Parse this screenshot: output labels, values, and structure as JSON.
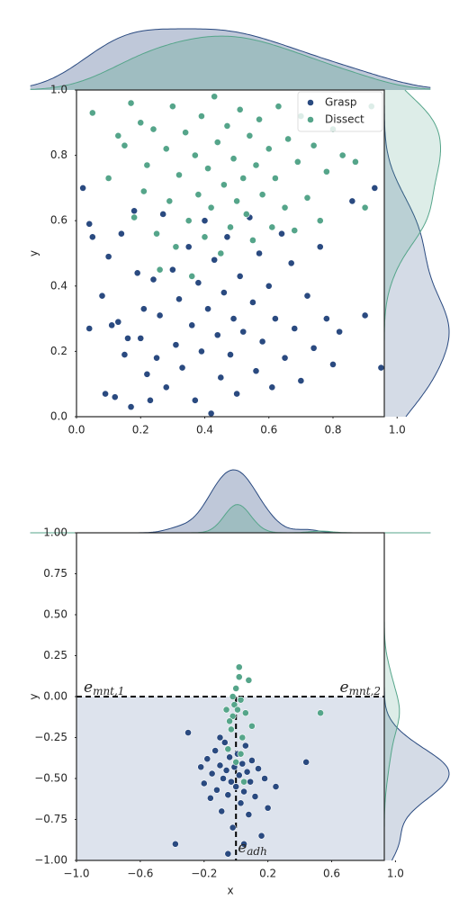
{
  "chart_data": [
    {
      "type": "scatter",
      "ylabel": "y",
      "legend": "upper right",
      "xlim": [
        0,
        0.96
      ],
      "ylim": [
        0,
        1
      ],
      "xticks": [
        {
          "value": 0,
          "label": "0.0"
        },
        0.2,
        0.4,
        0.6,
        0.8,
        {
          "value": 1,
          "label": "1.0"
        }
      ],
      "yticks": [
        {
          "value": 0,
          "label": "0.0"
        },
        0.2,
        0.4,
        0.6,
        0.8,
        {
          "value": 1,
          "label": "1.0"
        }
      ],
      "series": [
        {
          "name": "Grasp",
          "color": "#2a4a80",
          "x": [
            0.02,
            0.04,
            0.04,
            0.05,
            0.08,
            0.09,
            0.1,
            0.11,
            0.12,
            0.13,
            0.14,
            0.15,
            0.16,
            0.17,
            0.18,
            0.19,
            0.2,
            0.21,
            0.22,
            0.23,
            0.24,
            0.25,
            0.26,
            0.27,
            0.28,
            0.3,
            0.31,
            0.32,
            0.33,
            0.35,
            0.36,
            0.37,
            0.38,
            0.39,
            0.4,
            0.41,
            0.42,
            0.43,
            0.44,
            0.45,
            0.46,
            0.47,
            0.48,
            0.49,
            0.5,
            0.51,
            0.52,
            0.54,
            0.55,
            0.56,
            0.57,
            0.58,
            0.6,
            0.61,
            0.62,
            0.64,
            0.65,
            0.67,
            0.68,
            0.7,
            0.72,
            0.74,
            0.76,
            0.78,
            0.8,
            0.82,
            0.86,
            0.9,
            0.93,
            0.95
          ],
          "values": [
            0.7,
            0.59,
            0.27,
            0.55,
            0.37,
            0.07,
            0.49,
            0.28,
            0.06,
            0.29,
            0.56,
            0.19,
            0.24,
            0.03,
            0.63,
            0.44,
            0.24,
            0.33,
            0.13,
            0.05,
            0.42,
            0.18,
            0.31,
            0.62,
            0.09,
            0.45,
            0.22,
            0.36,
            0.15,
            0.52,
            0.28,
            0.05,
            0.41,
            0.2,
            0.6,
            0.33,
            0.01,
            0.48,
            0.25,
            0.12,
            0.38,
            0.55,
            0.19,
            0.3,
            0.07,
            0.43,
            0.26,
            0.61,
            0.35,
            0.14,
            0.5,
            0.23,
            0.4,
            0.09,
            0.3,
            0.56,
            0.18,
            0.47,
            0.27,
            0.11,
            0.37,
            0.21,
            0.52,
            0.3,
            0.16,
            0.26,
            0.66,
            0.31,
            0.7,
            0.15
          ]
        },
        {
          "name": "Dissect",
          "color": "#55a58a",
          "x": [
            0.05,
            0.1,
            0.13,
            0.15,
            0.17,
            0.18,
            0.2,
            0.21,
            0.22,
            0.24,
            0.25,
            0.26,
            0.28,
            0.29,
            0.3,
            0.31,
            0.32,
            0.34,
            0.35,
            0.36,
            0.37,
            0.38,
            0.39,
            0.4,
            0.41,
            0.42,
            0.43,
            0.44,
            0.45,
            0.46,
            0.47,
            0.48,
            0.49,
            0.5,
            0.51,
            0.52,
            0.53,
            0.54,
            0.55,
            0.56,
            0.57,
            0.58,
            0.6,
            0.61,
            0.62,
            0.63,
            0.65,
            0.66,
            0.68,
            0.69,
            0.7,
            0.72,
            0.74,
            0.76,
            0.78,
            0.8,
            0.83,
            0.87,
            0.9,
            0.92
          ],
          "values": [
            0.93,
            0.73,
            0.86,
            0.83,
            0.96,
            0.61,
            0.9,
            0.69,
            0.77,
            0.88,
            0.56,
            0.45,
            0.82,
            0.66,
            0.95,
            0.52,
            0.74,
            0.87,
            0.6,
            0.43,
            0.8,
            0.68,
            0.92,
            0.55,
            0.76,
            0.64,
            0.98,
            0.84,
            0.5,
            0.71,
            0.89,
            0.58,
            0.79,
            0.66,
            0.94,
            0.73,
            0.62,
            0.86,
            0.54,
            0.77,
            0.91,
            0.68,
            0.82,
            0.58,
            0.73,
            0.95,
            0.64,
            0.85,
            0.57,
            0.78,
            0.92,
            0.67,
            0.83,
            0.6,
            0.75,
            0.88,
            0.8,
            0.78,
            0.64,
            0.95
          ]
        }
      ]
    },
    {
      "type": "scatter",
      "xlabel": "x",
      "ylabel": "y",
      "xlim": [
        -1,
        0.93
      ],
      "ylim": [
        -1,
        1
      ],
      "hline": 0,
      "vline": 0,
      "xticks": [
        {
          "value": -1,
          "label": "−1.0"
        },
        {
          "value": -0.6,
          "label": "−0.6"
        },
        {
          "value": -0.2,
          "label": "−0.2"
        },
        0.2,
        0.6,
        {
          "value": 1,
          "label": "1.0"
        }
      ],
      "yticks": [
        {
          "value": 1,
          "label": "1.00"
        },
        0.75,
        {
          "value": 0.5,
          "label": "0.50"
        },
        0.25,
        {
          "value": 0,
          "label": "0.00"
        },
        {
          "value": -0.25,
          "label": "−0.25"
        },
        {
          "value": -0.5,
          "label": "−0.50"
        },
        {
          "value": -0.75,
          "label": "−0.75"
        },
        {
          "value": -1,
          "label": "−1.00"
        }
      ],
      "annotations": [
        {
          "base": "e",
          "sub": "mnt,1"
        },
        {
          "base": "e",
          "sub": "mnt,2"
        },
        {
          "base": "e",
          "sub": "adh"
        }
      ],
      "series": [
        {
          "name": "Grasp",
          "color": "#2a4a80",
          "x": [
            -0.38,
            -0.3,
            -0.22,
            -0.2,
            -0.18,
            -0.16,
            -0.15,
            -0.13,
            -0.12,
            -0.1,
            -0.09,
            -0.08,
            -0.07,
            -0.06,
            -0.05,
            -0.04,
            -0.03,
            -0.02,
            -0.01,
            0,
            0.01,
            0.02,
            0.03,
            0.04,
            0.05,
            0.06,
            0.07,
            0.08,
            0.09,
            0.1,
            0.12,
            0.14,
            0.16,
            0.18,
            0.2,
            0.25,
            0.44,
            -0.05,
            0.05,
            -0.1
          ],
          "values": [
            -0.9,
            -0.22,
            -0.43,
            -0.53,
            -0.38,
            -0.62,
            -0.47,
            -0.33,
            -0.57,
            -0.42,
            -0.7,
            -0.5,
            -0.28,
            -0.45,
            -0.6,
            -0.37,
            -0.52,
            -0.8,
            -0.43,
            -0.55,
            -0.35,
            -0.48,
            -0.65,
            -0.41,
            -0.58,
            -0.3,
            -0.46,
            -0.72,
            -0.52,
            -0.39,
            -0.61,
            -0.44,
            -0.85,
            -0.5,
            -0.68,
            -0.55,
            -0.4,
            -0.96,
            -0.9,
            -0.25
          ]
        },
        {
          "name": "Dissect",
          "color": "#55a58a",
          "x": [
            -0.05,
            -0.03,
            -0.02,
            -0.01,
            0,
            0.01,
            0.02,
            0.03,
            -0.04,
            0.04,
            0.02,
            -0.02,
            0.06,
            0.08,
            0.53,
            0,
            0.05,
            -0.06,
            0.03,
            0.1
          ],
          "values": [
            -0.32,
            -0.2,
            -0.12,
            -0.05,
            0.05,
            -0.08,
            0.12,
            -0.02,
            -0.15,
            -0.25,
            0.18,
            0,
            -0.1,
            0.1,
            -0.1,
            -0.4,
            -0.52,
            -0.08,
            -0.35,
            -0.18
          ]
        }
      ]
    }
  ]
}
